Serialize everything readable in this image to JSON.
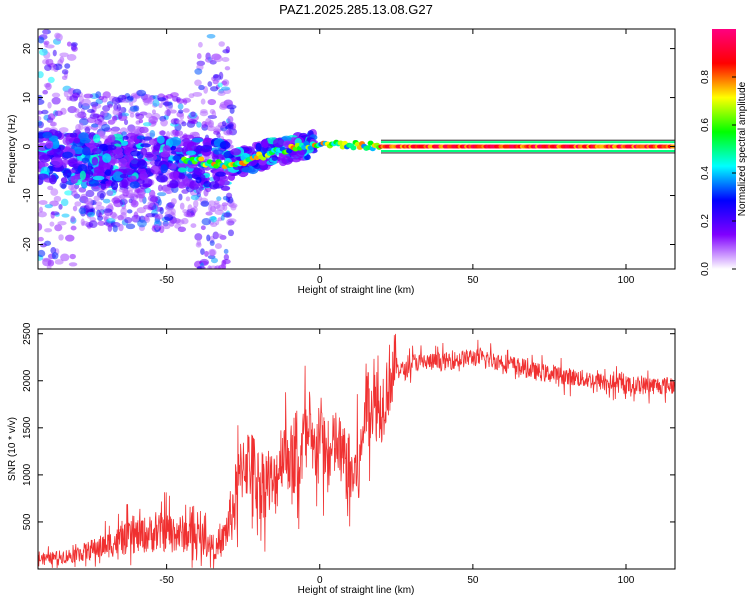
{
  "title": "PAZ1.2025.285.13.08.G27",
  "chart_data": [
    {
      "type": "heatmap",
      "xlabel": "Height of straight line (km)",
      "ylabel": "Frequency (Hz)",
      "xlim": [
        -92,
        116
      ],
      "ylim": [
        -25,
        24
      ],
      "xticks": [
        -50,
        0,
        50,
        100
      ],
      "xtick_labels": [
        "-50",
        "0",
        "50",
        "100"
      ],
      "yticks": [
        -20,
        -10,
        0,
        10,
        20
      ],
      "ytick_labels": [
        "-20",
        "-10",
        "0",
        "10",
        "20"
      ],
      "colorbar": {
        "label": "Normalized spectral amplitude",
        "range": [
          0,
          1
        ],
        "ticks": [
          0,
          0.2,
          0.4,
          0.6,
          0.8
        ],
        "tick_labels": [
          "0.0",
          "0.2",
          "0.4",
          "0.6",
          "0.8"
        ],
        "colors": [
          "#ffffff",
          "#8000ff",
          "#0000ff",
          "#00ffff",
          "#00ff00",
          "#ffff00",
          "#ff0000",
          "#ff0080"
        ]
      },
      "ridge": {
        "description_x": [
          -92,
          -70,
          -50,
          -40,
          -30,
          -20,
          -10,
          0,
          10,
          20,
          116
        ],
        "frequency_hz": [
          -2,
          -3,
          -3,
          -3,
          -4,
          -2,
          -0.5,
          0.5,
          0.3,
          0,
          0
        ]
      }
    },
    {
      "type": "line",
      "xlabel": "Height of straight line (km)",
      "ylabel": "SNR (10 * v/v)",
      "xlim": [
        -92,
        116
      ],
      "ylim": [
        0,
        2550
      ],
      "xticks": [
        -50,
        0,
        50,
        100
      ],
      "xtick_labels": [
        "-50",
        "0",
        "50",
        "100"
      ],
      "yticks": [
        500,
        1000,
        1500,
        2000,
        2500
      ],
      "ytick_labels": [
        "500",
        "1000",
        "1500",
        "2000",
        "2500"
      ],
      "color": "#f03030",
      "series": [
        {
          "name": "SNR",
          "x": [
            -92,
            -80,
            -70,
            -60,
            -50,
            -40,
            -33,
            -30,
            -27,
            -25,
            -22,
            -20,
            -17,
            -15,
            -12,
            -10,
            -7,
            -5,
            -2,
            0,
            3,
            5,
            8,
            10,
            13,
            15,
            18,
            20,
            23,
            25,
            28,
            30,
            40,
            50,
            60,
            70,
            80,
            90,
            100,
            116
          ],
          "y": [
            100,
            150,
            250,
            350,
            400,
            350,
            200,
            450,
            800,
            1150,
            1100,
            900,
            950,
            850,
            1300,
            1200,
            1050,
            1450,
            1200,
            1500,
            1100,
            1350,
            1150,
            1000,
            1050,
            1800,
            1750,
            1700,
            2050,
            2150,
            2100,
            2200,
            2200,
            2250,
            2200,
            2100,
            2050,
            2000,
            1950,
            1950
          ]
        }
      ]
    }
  ]
}
